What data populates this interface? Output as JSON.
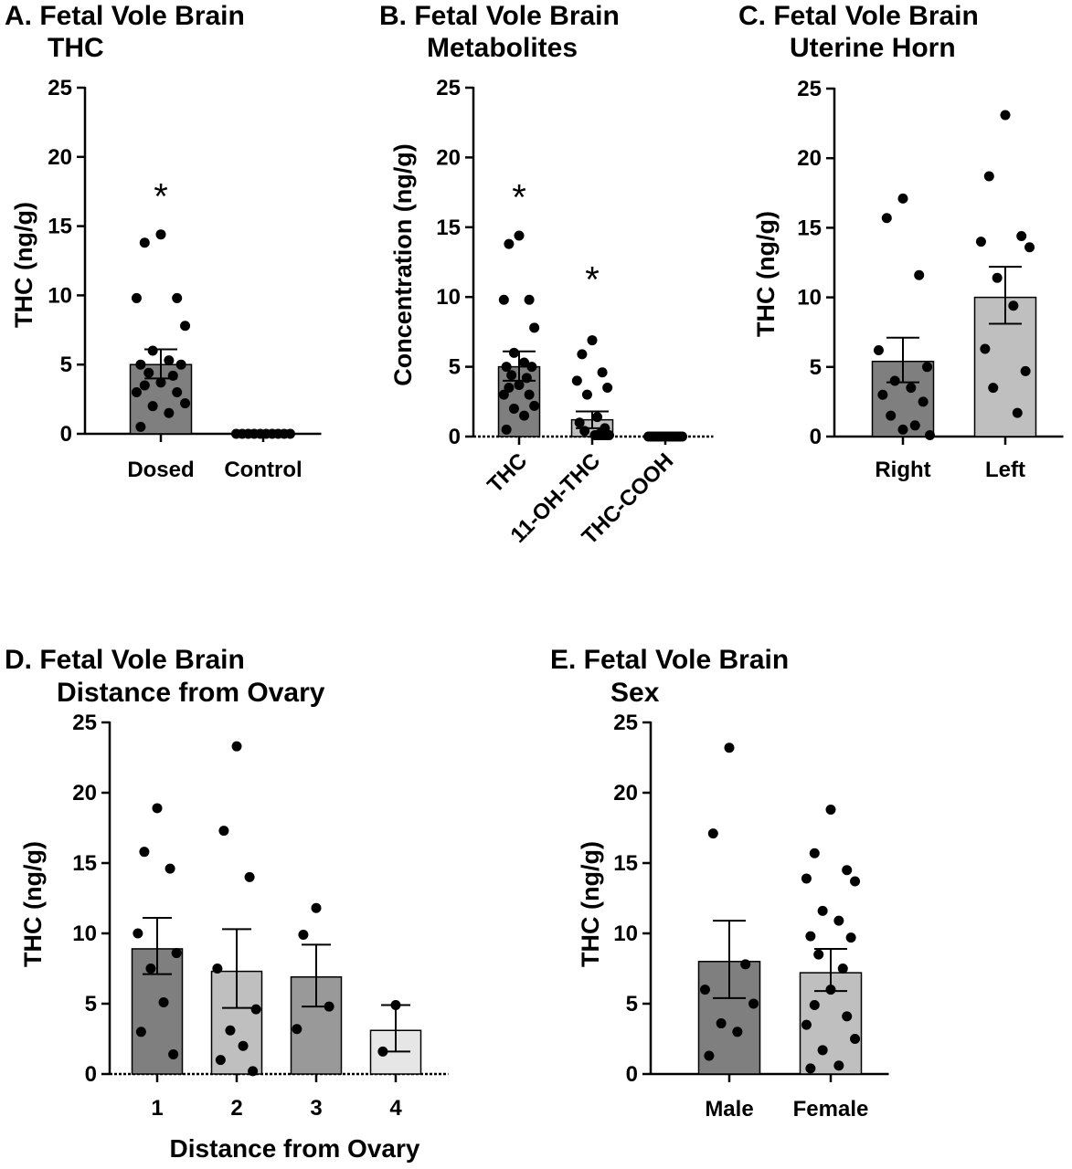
{
  "chart_data": [
    {
      "type": "bar",
      "title_line1": "A. Fetal Vole Brain",
      "title_line2": "THC",
      "ylabel": "THC (ng/g)",
      "xlabel": "",
      "ylim": [
        0,
        25
      ],
      "yticks": [
        "0",
        "5",
        "10",
        "15",
        "20",
        "25"
      ],
      "grid": false,
      "categories": [
        "Dosed",
        "Control"
      ],
      "series": [
        {
          "mean": 5.0,
          "sem_upper": 6.1,
          "sem_lower": 4.0,
          "color": "#7f7f7f",
          "points": [
            14.4,
            13.8,
            9.8,
            9.8,
            7.8,
            6.0,
            5.3,
            5.0,
            5.0,
            4.4,
            4.2,
            3.7,
            3.5,
            3.0,
            3.0,
            2.2,
            2.0,
            1.5,
            0.5
          ]
        },
        {
          "mean": 0,
          "sem_upper": 0,
          "sem_lower": 0,
          "color": "#bfbfbf",
          "points": [
            0,
            0,
            0,
            0,
            0,
            0,
            0,
            0,
            0,
            0
          ]
        }
      ],
      "significance": [
        {
          "category": "Dosed",
          "label": "*",
          "y": 17.7
        }
      ]
    },
    {
      "type": "bar",
      "title_line1": "B. Fetal Vole Brain",
      "title_line2": "Metabolites",
      "ylabel": "Concentration (ng/g)",
      "xlabel": "",
      "ylim": [
        0,
        25
      ],
      "yticks": [
        "0",
        "5",
        "10",
        "15",
        "20",
        "25"
      ],
      "grid": false,
      "categories": [
        "THC",
        "11-OH-THC",
        "THC-COOH"
      ],
      "series": [
        {
          "mean": 5.0,
          "sem_upper": 6.1,
          "sem_lower": 4.0,
          "color": "#7f7f7f",
          "points": [
            14.4,
            13.8,
            9.8,
            9.8,
            7.8,
            6.0,
            5.3,
            5.0,
            5.0,
            4.4,
            4.2,
            3.7,
            3.5,
            3.0,
            3.0,
            2.2,
            2.0,
            1.5,
            0.5
          ]
        },
        {
          "mean": 1.2,
          "sem_upper": 1.8,
          "sem_lower": 0.6,
          "color": "#bfbfbf",
          "points": [
            6.9,
            5.9,
            4.6,
            4.0,
            3.5,
            3.0,
            1.4,
            1.0,
            0.6,
            0.4,
            0.2,
            0.1,
            0.1,
            0.1,
            0.1,
            0.1,
            0.1,
            0.1,
            0.1,
            0.1
          ]
        },
        {
          "mean": 0,
          "sem_upper": 0,
          "sem_lower": 0,
          "color": "#d9d9d9",
          "points": [
            0,
            0,
            0,
            0,
            0,
            0,
            0,
            0,
            0,
            0,
            0,
            0,
            0,
            0,
            0,
            0,
            0,
            0
          ]
        }
      ],
      "significance": [
        {
          "category": "THC",
          "label": "*",
          "y": 17.7
        },
        {
          "category": "11-OH-THC",
          "label": "*",
          "y": 11.8
        }
      ]
    },
    {
      "type": "bar",
      "title_line1": "C. Fetal Vole Brain",
      "title_line2": "Uterine Horn",
      "ylabel": "THC (ng/g)",
      "xlabel": "",
      "ylim": [
        0,
        25
      ],
      "yticks": [
        "0",
        "5",
        "10",
        "15",
        "20",
        "25"
      ],
      "grid": false,
      "categories": [
        "Right",
        "Left"
      ],
      "series": [
        {
          "mean": 5.4,
          "sem_upper": 7.1,
          "sem_lower": 3.9,
          "color": "#7f7f7f",
          "points": [
            17.1,
            15.7,
            11.6,
            6.2,
            5.0,
            4.0,
            3.5,
            3.0,
            2.5,
            1.5,
            0.8,
            0.5,
            0.1
          ]
        },
        {
          "mean": 10.0,
          "sem_upper": 12.2,
          "sem_lower": 8.1,
          "color": "#bfbfbf",
          "points": [
            23.1,
            18.7,
            14.4,
            14.0,
            13.6,
            11.4,
            9.4,
            6.3,
            4.7,
            3.5,
            1.7
          ]
        }
      ],
      "significance": []
    },
    {
      "type": "bar",
      "title_line1": "D. Fetal Vole Brain",
      "title_line2": "Distance from Ovary",
      "ylabel": "THC (ng/g)",
      "xlabel": "Distance from Ovary",
      "ylim": [
        0,
        25
      ],
      "yticks": [
        "0",
        "5",
        "10",
        "15",
        "20",
        "25"
      ],
      "grid": false,
      "categories": [
        "1",
        "2",
        "3",
        "4"
      ],
      "series": [
        {
          "mean": 8.9,
          "sem_upper": 11.1,
          "sem_lower": 7.1,
          "color": "#7f7f7f",
          "points": [
            18.9,
            15.8,
            14.6,
            10.0,
            8.6,
            7.5,
            5.1,
            3.0,
            1.4
          ]
        },
        {
          "mean": 7.3,
          "sem_upper": 10.3,
          "sem_lower": 4.7,
          "color": "#bfbfbf",
          "points": [
            23.3,
            17.3,
            14.0,
            7.5,
            4.6,
            3.1,
            2.0,
            1.0,
            0.2
          ]
        },
        {
          "mean": 6.9,
          "sem_upper": 9.2,
          "sem_lower": 4.8,
          "color": "#999999",
          "points": [
            11.8,
            9.9,
            4.8,
            3.2
          ]
        },
        {
          "mean": 3.1,
          "sem_upper": 4.9,
          "sem_lower": 1.6,
          "color": "#e6e6e6",
          "points": [
            4.9,
            1.6
          ]
        }
      ],
      "significance": []
    },
    {
      "type": "bar",
      "title_line1": "E. Fetal Vole Brain",
      "title_line2": "Sex",
      "ylabel": "THC (ng/g)",
      "xlabel": "",
      "ylim": [
        0,
        25
      ],
      "yticks": [
        "0",
        "5",
        "10",
        "15",
        "20",
        "25"
      ],
      "grid": false,
      "categories": [
        "Male",
        "Female"
      ],
      "series": [
        {
          "mean": 8.0,
          "sem_upper": 10.9,
          "sem_lower": 5.4,
          "color": "#7f7f7f",
          "points": [
            23.2,
            17.1,
            7.8,
            6.0,
            5.0,
            3.6,
            3.0,
            1.3
          ]
        },
        {
          "mean": 7.2,
          "sem_upper": 8.9,
          "sem_lower": 5.9,
          "color": "#bfbfbf",
          "points": [
            18.8,
            15.7,
            14.5,
            13.9,
            13.7,
            11.6,
            10.9,
            9.8,
            9.7,
            8.5,
            7.5,
            6.0,
            4.9,
            4.1,
            3.5,
            2.5,
            1.7,
            0.6,
            0.4
          ]
        }
      ],
      "significance": []
    }
  ]
}
